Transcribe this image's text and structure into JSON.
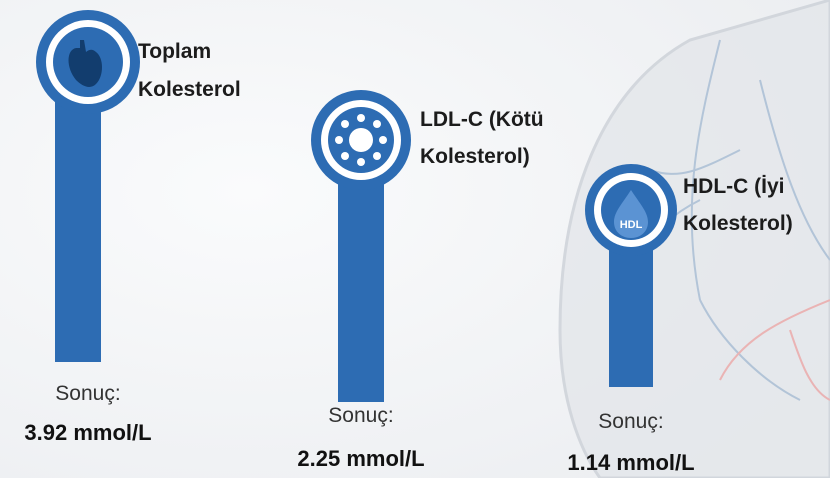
{
  "items": [
    {
      "title": [
        "Toplam",
        "Kolesterol"
      ],
      "result_label": "Sonuç:",
      "result": "3.92 mmol/L"
    },
    {
      "title": [
        "LDL-C (Kötü",
        "Kolesterol)"
      ],
      "result_label": "Sonuç:",
      "result": "2.25 mmol/L"
    },
    {
      "title": [
        "HDL-C (İyi",
        "Kolesterol)"
      ],
      "result_label": "Sonuç:",
      "result": "1.14 mmol/L",
      "icon_text": "HDL"
    }
  ]
}
